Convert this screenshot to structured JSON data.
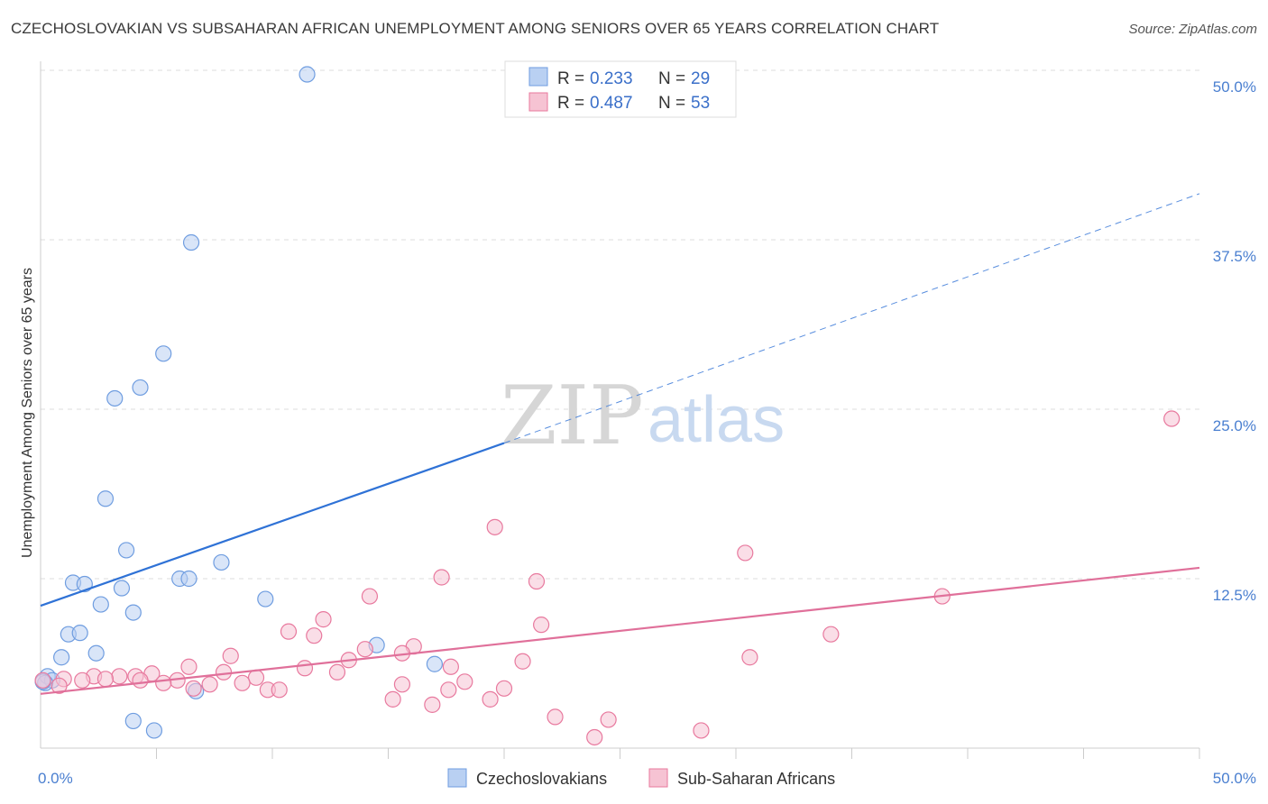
{
  "title": "CZECHOSLOVAKIAN VS SUBSAHARAN AFRICAN UNEMPLOYMENT AMONG SENIORS OVER 65 YEARS CORRELATION CHART",
  "source": "Source: ZipAtlas.com",
  "watermark": {
    "zip": "ZIP",
    "atlas": "atlas"
  },
  "chart_data": {
    "type": "scatter",
    "ylabel": "Unemployment Among Seniors over 65 years",
    "xlim": [
      0,
      50
    ],
    "ylim": [
      0,
      50
    ],
    "x_tick_labels": [
      "0.0%",
      "50.0%"
    ],
    "y_ticks": [
      12.5,
      25.0,
      37.5,
      50.0
    ],
    "y_tick_labels": [
      "12.5%",
      "25.0%",
      "37.5%",
      "50.0%"
    ],
    "grid": true,
    "legend_position": "top-center",
    "legend": [
      {
        "r_label": "R =",
        "r_value": "0.233",
        "n_label": "N =",
        "n_value": "29"
      },
      {
        "r_label": "R =",
        "r_value": "0.487",
        "n_label": "N =",
        "n_value": "53"
      }
    ],
    "series": [
      {
        "name": "Czechoslovakians",
        "color": "#6f9de0",
        "fill": "#b9d0f2",
        "trend": {
          "x0": 0,
          "y0": 10.5,
          "x1": 20,
          "y1": 22.5,
          "dash_to": 50,
          "dash_y": 40.9
        },
        "points": [
          [
            11.5,
            49.7
          ],
          [
            6.5,
            37.3
          ],
          [
            5.3,
            29.1
          ],
          [
            4.3,
            26.6
          ],
          [
            3.2,
            25.8
          ],
          [
            2.8,
            18.4
          ],
          [
            3.7,
            14.6
          ],
          [
            7.8,
            13.7
          ],
          [
            1.4,
            12.2
          ],
          [
            1.9,
            12.1
          ],
          [
            6.0,
            12.5
          ],
          [
            6.4,
            12.5
          ],
          [
            3.5,
            11.8
          ],
          [
            9.7,
            11.0
          ],
          [
            2.6,
            10.6
          ],
          [
            4.0,
            10.0
          ],
          [
            1.2,
            8.4
          ],
          [
            1.7,
            8.5
          ],
          [
            14.5,
            7.6
          ],
          [
            0.9,
            6.7
          ],
          [
            2.4,
            7.0
          ],
          [
            17.0,
            6.2
          ],
          [
            0.3,
            5.3
          ],
          [
            0.5,
            5.0
          ],
          [
            6.7,
            4.2
          ],
          [
            0.2,
            4.8
          ],
          [
            4.0,
            2.0
          ],
          [
            4.9,
            1.3
          ],
          [
            0.1,
            4.9
          ]
        ]
      },
      {
        "name": "Sub-Saharan Africans",
        "color": "#e8799e",
        "fill": "#f6c3d3",
        "trend": {
          "x0": 0,
          "y0": 4.0,
          "x1": 50,
          "y1": 13.3
        },
        "points": [
          [
            48.8,
            24.3
          ],
          [
            19.6,
            16.3
          ],
          [
            30.4,
            14.4
          ],
          [
            17.3,
            12.6
          ],
          [
            21.4,
            12.3
          ],
          [
            38.9,
            11.2
          ],
          [
            14.2,
            11.2
          ],
          [
            12.2,
            9.5
          ],
          [
            21.6,
            9.1
          ],
          [
            10.7,
            8.6
          ],
          [
            11.8,
            8.3
          ],
          [
            34.1,
            8.4
          ],
          [
            16.1,
            7.5
          ],
          [
            14.0,
            7.3
          ],
          [
            15.6,
            7.0
          ],
          [
            8.2,
            6.8
          ],
          [
            30.6,
            6.7
          ],
          [
            13.3,
            6.5
          ],
          [
            20.8,
            6.4
          ],
          [
            6.4,
            6.0
          ],
          [
            11.4,
            5.9
          ],
          [
            17.7,
            6.0
          ],
          [
            7.9,
            5.6
          ],
          [
            12.8,
            5.6
          ],
          [
            4.8,
            5.5
          ],
          [
            9.3,
            5.2
          ],
          [
            2.3,
            5.3
          ],
          [
            3.4,
            5.3
          ],
          [
            4.1,
            5.3
          ],
          [
            1.0,
            5.1
          ],
          [
            1.8,
            5.0
          ],
          [
            2.8,
            5.1
          ],
          [
            4.3,
            5.0
          ],
          [
            5.9,
            5.0
          ],
          [
            8.7,
            4.8
          ],
          [
            18.3,
            4.9
          ],
          [
            5.3,
            4.8
          ],
          [
            7.3,
            4.7
          ],
          [
            15.6,
            4.7
          ],
          [
            0.8,
            4.6
          ],
          [
            20.0,
            4.4
          ],
          [
            9.8,
            4.3
          ],
          [
            17.6,
            4.3
          ],
          [
            10.3,
            4.3
          ],
          [
            6.6,
            4.4
          ],
          [
            15.2,
            3.6
          ],
          [
            19.4,
            3.6
          ],
          [
            16.9,
            3.2
          ],
          [
            22.2,
            2.3
          ],
          [
            24.5,
            2.1
          ],
          [
            28.5,
            1.3
          ],
          [
            23.9,
            0.8
          ],
          [
            0.1,
            5.0
          ]
        ]
      }
    ]
  }
}
